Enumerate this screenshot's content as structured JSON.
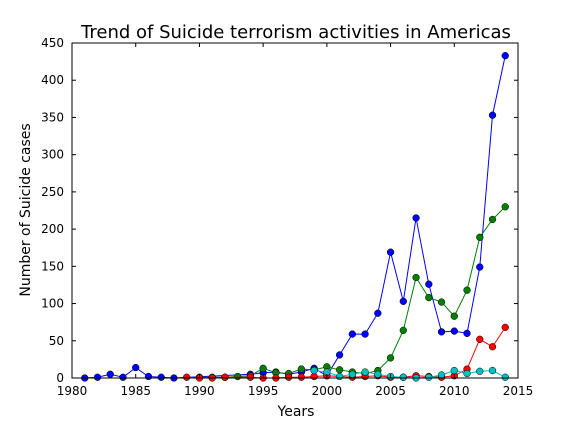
{
  "chart_data": {
    "type": "line",
    "title": "Trend of Suicide terrorism activities in Americas",
    "xlabel": "Years",
    "ylabel": "Number of Suicide cases",
    "xlim": [
      1980,
      2015
    ],
    "ylim": [
      0,
      450
    ],
    "xticks": [
      1980,
      1985,
      1990,
      1995,
      2000,
      2005,
      2010,
      2015
    ],
    "yticks": [
      0,
      50,
      100,
      150,
      200,
      250,
      300,
      350,
      400,
      450
    ],
    "grid": false,
    "series": [
      {
        "color": "#0000ff",
        "points": [
          [
            1981,
            0
          ],
          [
            1982,
            1
          ],
          [
            1983,
            5
          ],
          [
            1984,
            1
          ],
          [
            1985,
            14
          ],
          [
            1986,
            2
          ],
          [
            1987,
            1
          ],
          [
            1988,
            0
          ],
          [
            1994,
            5
          ],
          [
            1995,
            7
          ],
          [
            1996,
            8
          ],
          [
            1997,
            5
          ],
          [
            1998,
            8
          ],
          [
            1999,
            13
          ],
          [
            2000,
            3
          ],
          [
            2001,
            31
          ],
          [
            2002,
            59
          ],
          [
            2003,
            59
          ],
          [
            2004,
            87
          ],
          [
            2005,
            169
          ],
          [
            2006,
            103
          ],
          [
            2007,
            215
          ],
          [
            2008,
            126
          ],
          [
            2009,
            62
          ],
          [
            2010,
            63
          ],
          [
            2011,
            60
          ],
          [
            2012,
            149
          ],
          [
            2013,
            353
          ],
          [
            2014,
            433
          ]
        ]
      },
      {
        "color": "#007f00",
        "points": [
          [
            1990,
            1
          ],
          [
            1991,
            1
          ],
          [
            1992,
            1
          ],
          [
            1993,
            2
          ],
          [
            1994,
            3
          ],
          [
            1995,
            13
          ],
          [
            1996,
            7
          ],
          [
            1997,
            6
          ],
          [
            1998,
            12
          ],
          [
            1999,
            11
          ],
          [
            2000,
            15
          ],
          [
            2001,
            11
          ],
          [
            2002,
            8
          ],
          [
            2003,
            6
          ],
          [
            2004,
            10
          ],
          [
            2005,
            27
          ],
          [
            2006,
            64
          ],
          [
            2007,
            135
          ],
          [
            2008,
            108
          ],
          [
            2009,
            102
          ],
          [
            2010,
            83
          ],
          [
            2011,
            118
          ],
          [
            2012,
            189
          ],
          [
            2013,
            213
          ],
          [
            2014,
            230
          ]
        ]
      },
      {
        "color": "#ff0000",
        "points": [
          [
            1989,
            1
          ],
          [
            1990,
            0
          ],
          [
            1991,
            0
          ],
          [
            1992,
            1
          ],
          [
            1994,
            1
          ],
          [
            1995,
            0
          ],
          [
            1996,
            0
          ],
          [
            1997,
            1
          ],
          [
            1998,
            1
          ],
          [
            1999,
            2
          ],
          [
            2000,
            3
          ],
          [
            2002,
            1
          ],
          [
            2003,
            2
          ],
          [
            2004,
            3
          ],
          [
            2005,
            1
          ],
          [
            2006,
            1
          ],
          [
            2007,
            3
          ],
          [
            2008,
            2
          ],
          [
            2009,
            1
          ],
          [
            2010,
            3
          ],
          [
            2011,
            12
          ],
          [
            2012,
            52
          ],
          [
            2013,
            42
          ],
          [
            2014,
            68
          ]
        ]
      },
      {
        "color": "#00bfbf",
        "points": [
          [
            1999,
            10
          ],
          [
            2000,
            8
          ],
          [
            2001,
            2
          ],
          [
            2002,
            5
          ],
          [
            2003,
            8
          ],
          [
            2004,
            5
          ],
          [
            2005,
            2
          ],
          [
            2006,
            1
          ],
          [
            2007,
            0
          ],
          [
            2008,
            1
          ],
          [
            2009,
            4
          ],
          [
            2010,
            10
          ],
          [
            2011,
            6
          ],
          [
            2012,
            9
          ],
          [
            2013,
            10
          ],
          [
            2014,
            1
          ]
        ]
      }
    ]
  }
}
